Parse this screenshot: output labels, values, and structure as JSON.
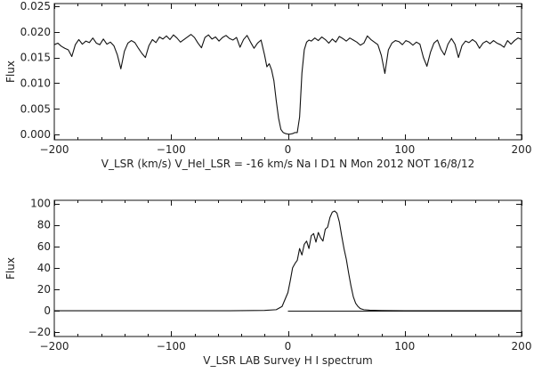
{
  "chart_data": [
    {
      "type": "line",
      "xlabel": "V_LSR (km/s)  V_Hel_LSR = -16 km/s  Na I D1  N Mon 2012 NOT 16/8/12",
      "ylabel": "Flux",
      "xlim": [
        -200,
        200
      ],
      "ylim": [
        -0.001,
        0.0255
      ],
      "xticks": [
        -200,
        -100,
        0,
        100,
        200
      ],
      "xtick_labels": [
        "−200",
        "−100",
        "0",
        "100",
        "200"
      ],
      "yticks": [
        0.0,
        0.005,
        0.01,
        0.015,
        0.02,
        0.025
      ],
      "ytick_labels": [
        "0.000",
        "0.005",
        "0.010",
        "0.015",
        "0.020",
        "0.025"
      ],
      "grid": false,
      "series": [
        {
          "x": [
            -200,
            -197,
            -194,
            -191,
            -188,
            -185,
            -182,
            -179,
            -176,
            -173,
            -170,
            -167,
            -164,
            -161,
            -158,
            -155,
            -152,
            -149,
            -146,
            -143,
            -140,
            -137,
            -134,
            -131,
            -128,
            -125,
            -122,
            -119,
            -116,
            -113,
            -110,
            -107,
            -104,
            -101,
            -98,
            -95,
            -92,
            -89,
            -86,
            -83,
            -80,
            -77,
            -74,
            -71,
            -68,
            -65,
            -62,
            -59,
            -56,
            -53,
            -50,
            -47,
            -44,
            -41,
            -38,
            -35,
            -32,
            -29,
            -26,
            -23,
            -20,
            -18,
            -16,
            -14,
            -12,
            -10,
            -8,
            -6,
            -4,
            -2,
            0,
            2,
            4,
            6,
            8,
            10,
            12,
            14,
            16,
            18,
            20,
            23,
            26,
            29,
            32,
            35,
            38,
            41,
            44,
            47,
            50,
            53,
            56,
            59,
            62,
            65,
            68,
            71,
            74,
            77,
            80,
            83,
            86,
            89,
            92,
            95,
            98,
            101,
            104,
            107,
            110,
            113,
            116,
            119,
            122,
            125,
            128,
            131,
            134,
            137,
            140,
            143,
            146,
            149,
            152,
            155,
            158,
            161,
            164,
            167,
            170,
            173,
            176,
            179,
            182,
            185,
            188,
            191,
            194,
            197,
            200
          ],
          "y": [
            0.0175,
            0.0178,
            0.0172,
            0.0168,
            0.0165,
            0.0152,
            0.0175,
            0.0185,
            0.0176,
            0.0182,
            0.0179,
            0.0188,
            0.0178,
            0.0175,
            0.0186,
            0.0176,
            0.018,
            0.0173,
            0.0155,
            0.0128,
            0.0162,
            0.0178,
            0.0183,
            0.0179,
            0.0168,
            0.0158,
            0.015,
            0.0173,
            0.0185,
            0.0179,
            0.019,
            0.0186,
            0.0192,
            0.0185,
            0.0194,
            0.0188,
            0.018,
            0.0185,
            0.019,
            0.0195,
            0.0189,
            0.0178,
            0.0169,
            0.0189,
            0.0194,
            0.0186,
            0.019,
            0.0182,
            0.0189,
            0.0193,
            0.0187,
            0.0184,
            0.0189,
            0.017,
            0.0185,
            0.0193,
            0.018,
            0.0168,
            0.0178,
            0.0184,
            0.0155,
            0.0132,
            0.0138,
            0.0126,
            0.0105,
            0.0066,
            0.0032,
            0.001,
            0.0004,
            0.0002,
            0.0001,
            0.0001,
            0.0002,
            0.0004,
            0.0004,
            0.0034,
            0.012,
            0.0165,
            0.018,
            0.0184,
            0.0182,
            0.0188,
            0.0183,
            0.019,
            0.0185,
            0.0178,
            0.0186,
            0.018,
            0.0191,
            0.0187,
            0.0182,
            0.0188,
            0.0184,
            0.018,
            0.0174,
            0.0178,
            0.0192,
            0.0185,
            0.018,
            0.0175,
            0.0154,
            0.0119,
            0.0165,
            0.0178,
            0.0183,
            0.0181,
            0.0175,
            0.0183,
            0.018,
            0.0174,
            0.018,
            0.0176,
            0.015,
            0.0133,
            0.016,
            0.0178,
            0.0184,
            0.0166,
            0.0155,
            0.0176,
            0.0187,
            0.0176,
            0.015,
            0.0173,
            0.0182,
            0.0179,
            0.0185,
            0.018,
            0.0168,
            0.0178,
            0.0182,
            0.0177,
            0.0183,
            0.0178,
            0.0175,
            0.017,
            0.0183,
            0.0176,
            0.0183,
            0.0188,
            0.0185
          ]
        }
      ]
    },
    {
      "type": "line",
      "xlabel": "V_LSR  LAB Survey H I spectrum",
      "ylabel": "Flux",
      "xlim": [
        -200,
        200
      ],
      "ylim": [
        -24,
        103
      ],
      "xticks": [
        -200,
        -100,
        0,
        100,
        200
      ],
      "xtick_labels": [
        "−200",
        "−100",
        "0",
        "100",
        "200"
      ],
      "yticks": [
        -20,
        0,
        20,
        40,
        60,
        80,
        100
      ],
      "ytick_labels": [
        "−20",
        "0",
        "20",
        "40",
        "60",
        "80",
        "100"
      ],
      "grid": false,
      "series": [
        {
          "x": [
            -200,
            -150,
            -100,
            -50,
            -20,
            -10,
            -5,
            0,
            2,
            4,
            6,
            8,
            10,
            12,
            14,
            16,
            18,
            20,
            22,
            24,
            26,
            28,
            30,
            32,
            34,
            36,
            38,
            40,
            42,
            44,
            46,
            48,
            50,
            52,
            54,
            56,
            58,
            60,
            62,
            65,
            70,
            80,
            100,
            150,
            200
          ],
          "y": [
            0,
            0,
            0,
            0,
            0.3,
            1,
            4,
            17,
            28,
            40,
            44,
            47,
            58,
            52,
            62,
            65,
            58,
            70,
            72,
            64,
            73,
            68,
            65,
            76,
            78,
            87,
            92,
            93,
            91,
            83,
            70,
            58,
            48,
            35,
            23,
            13,
            7,
            4,
            2,
            1,
            0.5,
            0.2,
            0,
            0,
            0
          ]
        }
      ],
      "baseline": {
        "y": 0,
        "x_range": [
          0,
          200
        ]
      }
    }
  ]
}
